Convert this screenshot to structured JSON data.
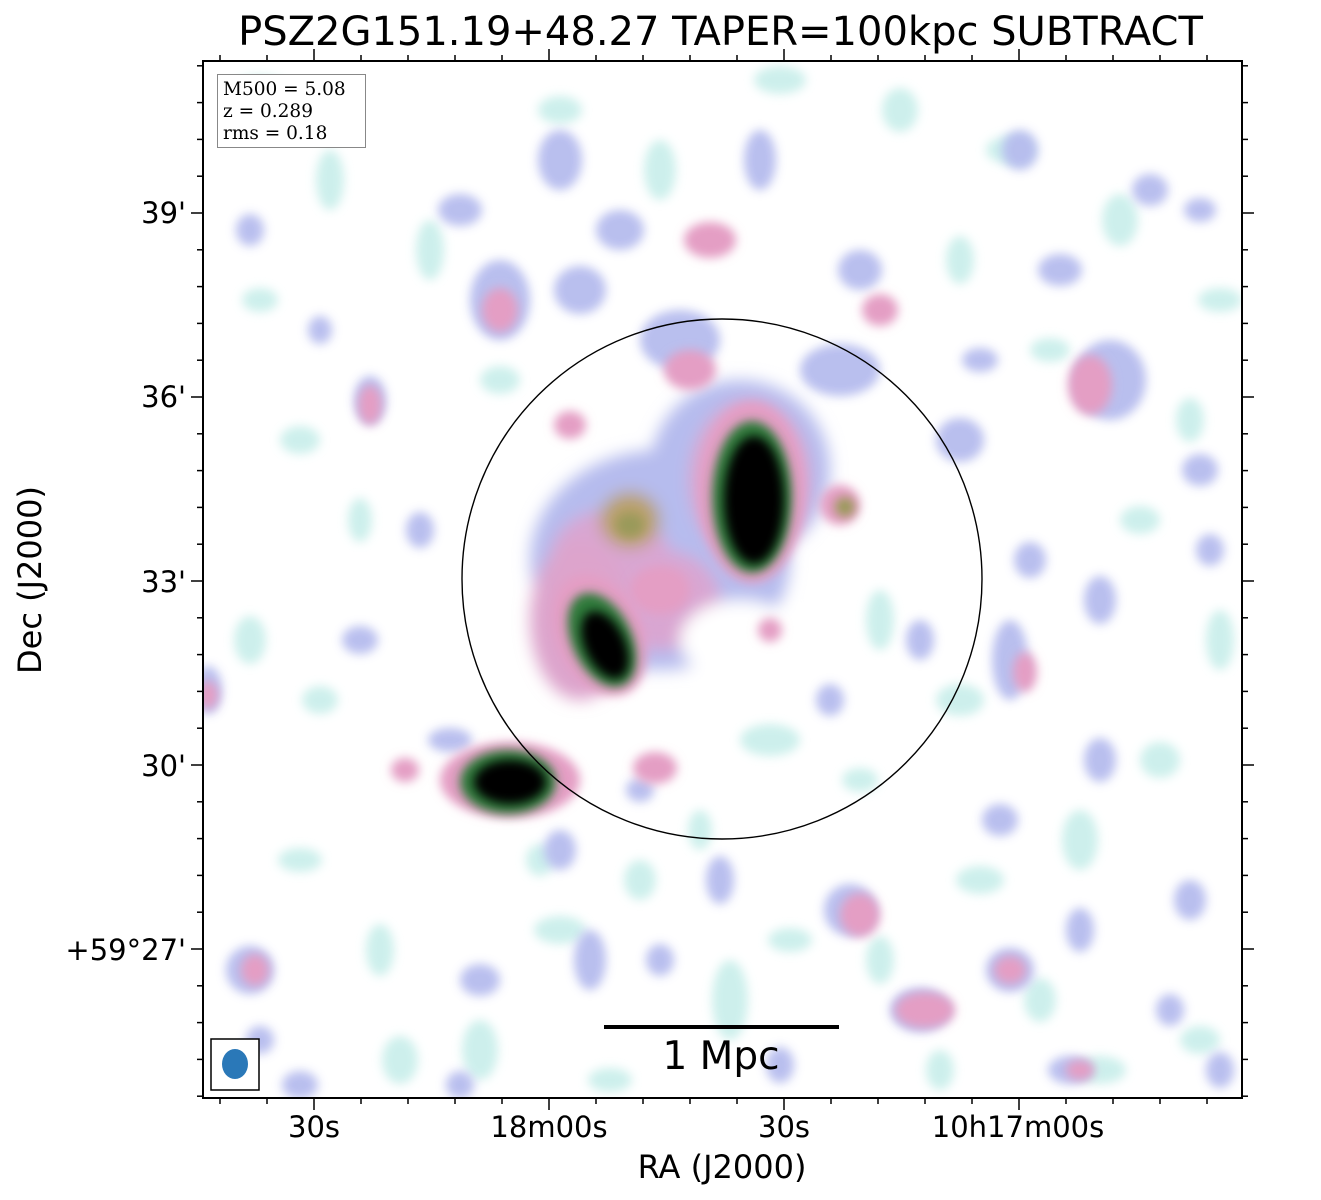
{
  "title": "PSZ2G151.19+48.27 TAPER=100kpc SUBTRACT",
  "axes": {
    "xlabel": "RA (J2000)",
    "ylabel": "Dec (J2000)",
    "x_ticks": [
      "30s",
      "18m00s",
      "30s",
      "10h17m00s"
    ],
    "y_ticks": [
      "39'",
      "36'",
      "33'",
      "30'",
      "+59°27'"
    ]
  },
  "info_box": {
    "mass": "M500 = 5.08",
    "redshift": "z = 0.289",
    "rms": "rms = 0.18"
  },
  "scalebar": {
    "label": "1 Mpc"
  },
  "colors": {
    "background": "#ffffff",
    "faint_emission": "#c8eeea",
    "low_emission": "#b9c0ec",
    "mid_emission": "#e6a4c8",
    "high_emission": "#3a7a3a",
    "peak_emission": "#000000",
    "beam": "#2a78b8"
  }
}
